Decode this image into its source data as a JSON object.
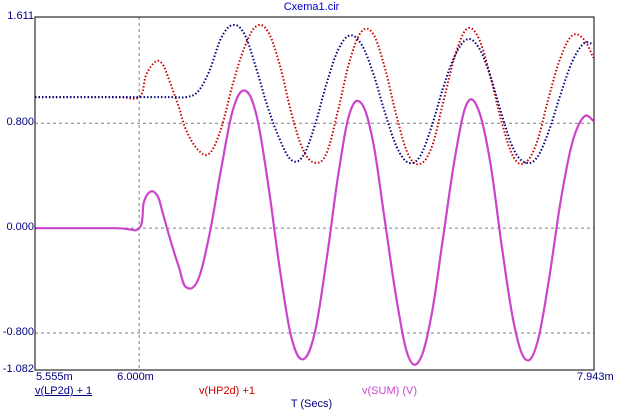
{
  "window": {
    "title": "Cxema1.cir"
  },
  "chart_data": {
    "type": "line",
    "title": "Cxema1.cir",
    "xlabel": "T (Secs)",
    "ylabel": "",
    "xlim": [
      0.005555,
      0.007943
    ],
    "ylim": [
      -1.082,
      1.611
    ],
    "x_ticks": [
      "5.555m",
      "6.000m",
      "7.943m"
    ],
    "y_ticks": [
      "1.611",
      "0.800",
      "0.000",
      "-0.800",
      "-1.082"
    ],
    "grid": true,
    "series": [
      {
        "name": "v(LP2d) + 1",
        "color": "#000080",
        "style": "dotted",
        "x": [
          0.005555,
          0.0059,
          0.006,
          0.00605,
          0.0061,
          0.00615,
          0.0062,
          0.00625,
          0.0063,
          0.00635,
          0.0064,
          0.00645,
          0.0065,
          0.00655,
          0.0066,
          0.00665,
          0.0067,
          0.00675,
          0.0068,
          0.00685,
          0.0069,
          0.00695,
          0.007,
          0.00705,
          0.0071,
          0.00715,
          0.0072,
          0.00725,
          0.0073,
          0.00735,
          0.0074,
          0.00745,
          0.0075,
          0.00755,
          0.0076,
          0.00765,
          0.0077,
          0.00775,
          0.0078,
          0.00785,
          0.0079,
          0.00794
        ],
        "y": [
          1.0,
          1.0,
          1.0,
          1.0,
          1.0,
          1.0,
          1.0,
          1.04,
          1.2,
          1.45,
          1.55,
          1.48,
          1.22,
          0.92,
          0.68,
          0.52,
          0.55,
          0.78,
          1.1,
          1.36,
          1.47,
          1.4,
          1.18,
          0.88,
          0.62,
          0.5,
          0.55,
          0.78,
          1.08,
          1.32,
          1.44,
          1.38,
          1.16,
          0.86,
          0.6,
          0.5,
          0.54,
          0.74,
          1.02,
          1.27,
          1.41,
          1.4
        ]
      },
      {
        "name": "v(HP2d) +1",
        "color": "#cc0000",
        "style": "dotted",
        "x": [
          0.005555,
          0.0059,
          0.006,
          0.00603,
          0.00607,
          0.0061,
          0.00613,
          0.00617,
          0.0062,
          0.00625,
          0.0063,
          0.00635,
          0.0064,
          0.00645,
          0.0065,
          0.00655,
          0.0066,
          0.00665,
          0.0067,
          0.00675,
          0.0068,
          0.00685,
          0.0069,
          0.00695,
          0.007,
          0.00705,
          0.0071,
          0.00715,
          0.0072,
          0.00725,
          0.0073,
          0.00735,
          0.0074,
          0.00745,
          0.0075,
          0.00755,
          0.0076,
          0.00765,
          0.0077,
          0.00775,
          0.0078,
          0.00785,
          0.0079,
          0.00794
        ],
        "y": [
          1.0,
          1.0,
          1.0,
          1.17,
          1.27,
          1.25,
          1.12,
          0.92,
          0.75,
          0.6,
          0.57,
          0.76,
          1.1,
          1.38,
          1.54,
          1.5,
          1.25,
          0.88,
          0.6,
          0.5,
          0.57,
          0.9,
          1.28,
          1.5,
          1.48,
          1.22,
          0.85,
          0.56,
          0.49,
          0.62,
          0.97,
          1.32,
          1.52,
          1.45,
          1.16,
          0.8,
          0.54,
          0.5,
          0.66,
          1.0,
          1.3,
          1.47,
          1.44,
          1.3
        ]
      },
      {
        "name": "v(SUM) (V)",
        "color": "#cc44cc",
        "style": "solid",
        "x": [
          0.005555,
          0.0059,
          0.006,
          0.00602,
          0.00605,
          0.00608,
          0.0061,
          0.00613,
          0.00617,
          0.0062,
          0.00625,
          0.0063,
          0.00635,
          0.0064,
          0.00645,
          0.0065,
          0.00655,
          0.0066,
          0.00665,
          0.0067,
          0.00675,
          0.0068,
          0.00685,
          0.0069,
          0.00695,
          0.007,
          0.00705,
          0.0071,
          0.00715,
          0.0072,
          0.00725,
          0.0073,
          0.00735,
          0.0074,
          0.00745,
          0.0075,
          0.00755,
          0.0076,
          0.00765,
          0.0077,
          0.00775,
          0.0078,
          0.00785,
          0.0079,
          0.00794
        ],
        "y": [
          0.0,
          0.0,
          0.0,
          0.2,
          0.28,
          0.24,
          0.12,
          -0.07,
          -0.3,
          -0.45,
          -0.4,
          -0.05,
          0.45,
          0.9,
          1.05,
          0.87,
          0.35,
          -0.3,
          -0.83,
          -1.0,
          -0.8,
          -0.25,
          0.4,
          0.88,
          0.95,
          0.65,
          0.05,
          -0.55,
          -0.98,
          -1.0,
          -0.65,
          -0.05,
          0.55,
          0.95,
          0.9,
          0.5,
          -0.15,
          -0.72,
          -1.0,
          -0.88,
          -0.4,
          0.2,
          0.65,
          0.85,
          0.82
        ]
      }
    ]
  }
}
